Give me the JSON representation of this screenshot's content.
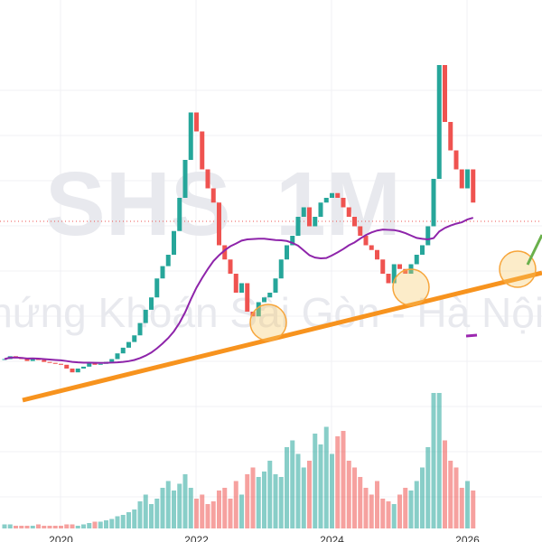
{
  "watermark": {
    "symbol": "SHS",
    "interval": "1M",
    "name": "Chứng Khoán Sài Gòn - Hà Nội"
  },
  "chart_data": {
    "type": "candlestick",
    "categories": [
      null,
      null,
      null,
      null,
      null,
      null,
      null,
      null,
      null,
      null,
      "2020",
      null,
      null,
      null,
      null,
      null,
      null,
      null,
      null,
      null,
      null,
      null,
      null,
      null,
      null,
      null,
      null,
      null,
      null,
      null,
      null,
      null,
      null,
      null,
      "2022",
      null,
      null,
      null,
      null,
      null,
      null,
      null,
      null,
      null,
      null,
      null,
      null,
      null,
      null,
      null,
      null,
      null,
      null,
      null,
      null,
      null,
      null,
      null,
      "2024",
      null,
      null,
      null,
      null,
      null,
      null,
      null,
      null,
      null,
      null,
      null,
      null,
      null,
      null,
      null,
      null,
      null,
      null,
      null,
      null,
      null,
      null,
      null,
      "2026",
      null
    ],
    "close": [
      5.0,
      5.3,
      5.2,
      5.0,
      4.8,
      5.1,
      4.9,
      4.7,
      4.6,
      4.5,
      4.4,
      4.0,
      3.6,
      4.0,
      4.2,
      4.6,
      4.4,
      4.5,
      4.7,
      5.0,
      5.6,
      6.2,
      6.8,
      7.5,
      8.8,
      10.2,
      11.5,
      13.5,
      14.8,
      16.0,
      18.5,
      22.0,
      26.0,
      31.0,
      29.0,
      25.0,
      23.0,
      21.5,
      17.0,
      15.5,
      14.0,
      12.0,
      13.0,
      10.0,
      9.5,
      11.0,
      11.5,
      12.0,
      13.5,
      15.5,
      17.0,
      18.0,
      20.0,
      21.0,
      19.0,
      20.0,
      21.5,
      22.0,
      22.5,
      22.0,
      21.0,
      20.0,
      19.0,
      18.0,
      17.0,
      16.5,
      15.5,
      14.0,
      13.0,
      15.0,
      14.5,
      14.0,
      15.0,
      16.0,
      17.0,
      19.0,
      24.0,
      36.0,
      30.0,
      27.0,
      25.0,
      23.0,
      25.0,
      21.5
    ],
    "volume": [
      3,
      3,
      2,
      2,
      2,
      2,
      3,
      2,
      2,
      2,
      2,
      3,
      3,
      2,
      3,
      4,
      5,
      5,
      6,
      7,
      9,
      10,
      12,
      14,
      20,
      25,
      18,
      22,
      30,
      35,
      28,
      33,
      40,
      30,
      22,
      25,
      18,
      20,
      28,
      30,
      22,
      35,
      25,
      40,
      45,
      38,
      42,
      50,
      40,
      38,
      60,
      65,
      55,
      45,
      50,
      70,
      62,
      75,
      55,
      68,
      72,
      50,
      45,
      38,
      30,
      25,
      35,
      22,
      20,
      18,
      25,
      30,
      28,
      35,
      45,
      60,
      100,
      100,
      65,
      50,
      45,
      30,
      35,
      28
    ],
    "up_color": "#26a69a",
    "down_color": "#ef5350"
  }
}
